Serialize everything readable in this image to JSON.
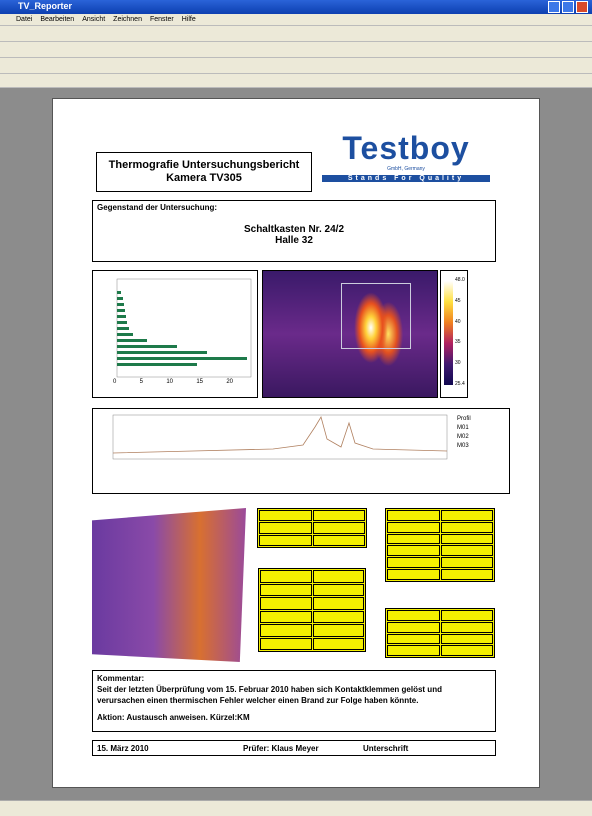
{
  "window": {
    "title": "TV_Reporter"
  },
  "menu": [
    "Datei",
    "Bearbeiten",
    "Ansicht",
    "Zeichnen",
    "Fenster",
    "Hilfe"
  ],
  "report": {
    "title": "Thermografie Untersuchungsbericht",
    "subtitle": "Kamera TV305",
    "logo": {
      "name": "Testboy",
      "sub": "GmbH, Germany",
      "slogan": "Stands For Quality"
    },
    "object": {
      "label": "Gegenstand der Untersuchung:",
      "line1": "Schaltkasten Nr. 24/2",
      "line2": "Halle 32"
    },
    "histogram": {
      "xticks": [
        "0",
        "5",
        "10",
        "15",
        "20"
      ]
    },
    "colorbar": {
      "ticks": [
        "48.0",
        "45",
        "40",
        "35",
        "30",
        "25.4"
      ]
    },
    "profile": {
      "legend": [
        "Profil",
        "M01",
        "M02",
        "M03"
      ]
    },
    "comment": {
      "label": "Kommentar:",
      "text": "Seit der letzten Überprüfung vom 15. Februar 2010 haben sich Kontaktklemmen gelöst und verursachen einen thermischen Fehler welcher einen Brand zur Folge haben könnte.",
      "action": "Aktion: Austausch anweisen. Kürzel:KM"
    },
    "footer": {
      "date": "15. März 2010",
      "inspector": "Prüfer: Klaus Meyer",
      "signature": "Unterschrift"
    }
  }
}
